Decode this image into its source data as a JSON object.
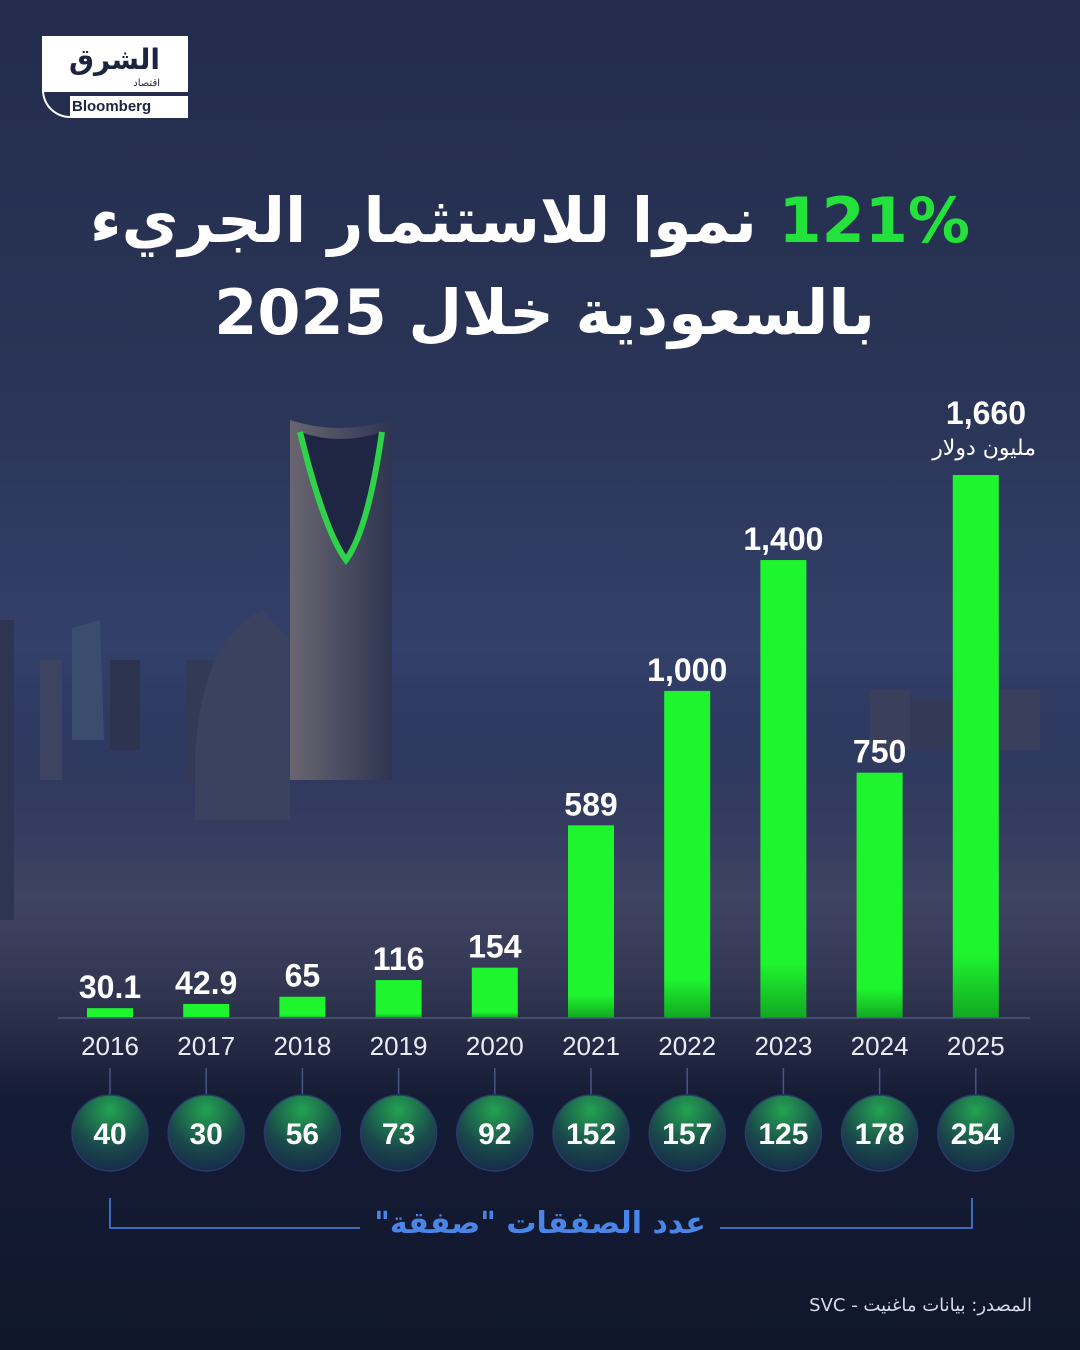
{
  "brand": {
    "name_ar": "الشرق",
    "sub_ar": "اقتصاد",
    "partner": "Bloomberg"
  },
  "headline": {
    "accent": "121%",
    "line1": "نموا للاستثمار الجريء",
    "line2": "بالسعودية خلال 2025"
  },
  "unit_label": "مليون دولار",
  "deals_caption": "عدد الصفقات \"صفقة\"",
  "source": "المصدر: بيانات ماغنيت - SVC",
  "colors": {
    "bar": "#1ff52e",
    "accent": "#22e23b",
    "deals_caption": "#4a86e8"
  },
  "chart_data": {
    "type": "bar",
    "categories": [
      "2016",
      "2017",
      "2018",
      "2019",
      "2020",
      "2021",
      "2022",
      "2023",
      "2024",
      "2025"
    ],
    "series": [
      {
        "values": [
          30.1,
          42.9,
          65,
          116,
          154,
          589,
          1000,
          1400,
          750,
          1660
        ]
      }
    ],
    "value_labels": [
      "30.1",
      "42.9",
      "65",
      "116",
      "154",
      "589",
      "1,000",
      "1,400",
      "750",
      "1,660"
    ],
    "deals": [
      40,
      30,
      56,
      73,
      92,
      152,
      157,
      125,
      178,
      254
    ]
  }
}
